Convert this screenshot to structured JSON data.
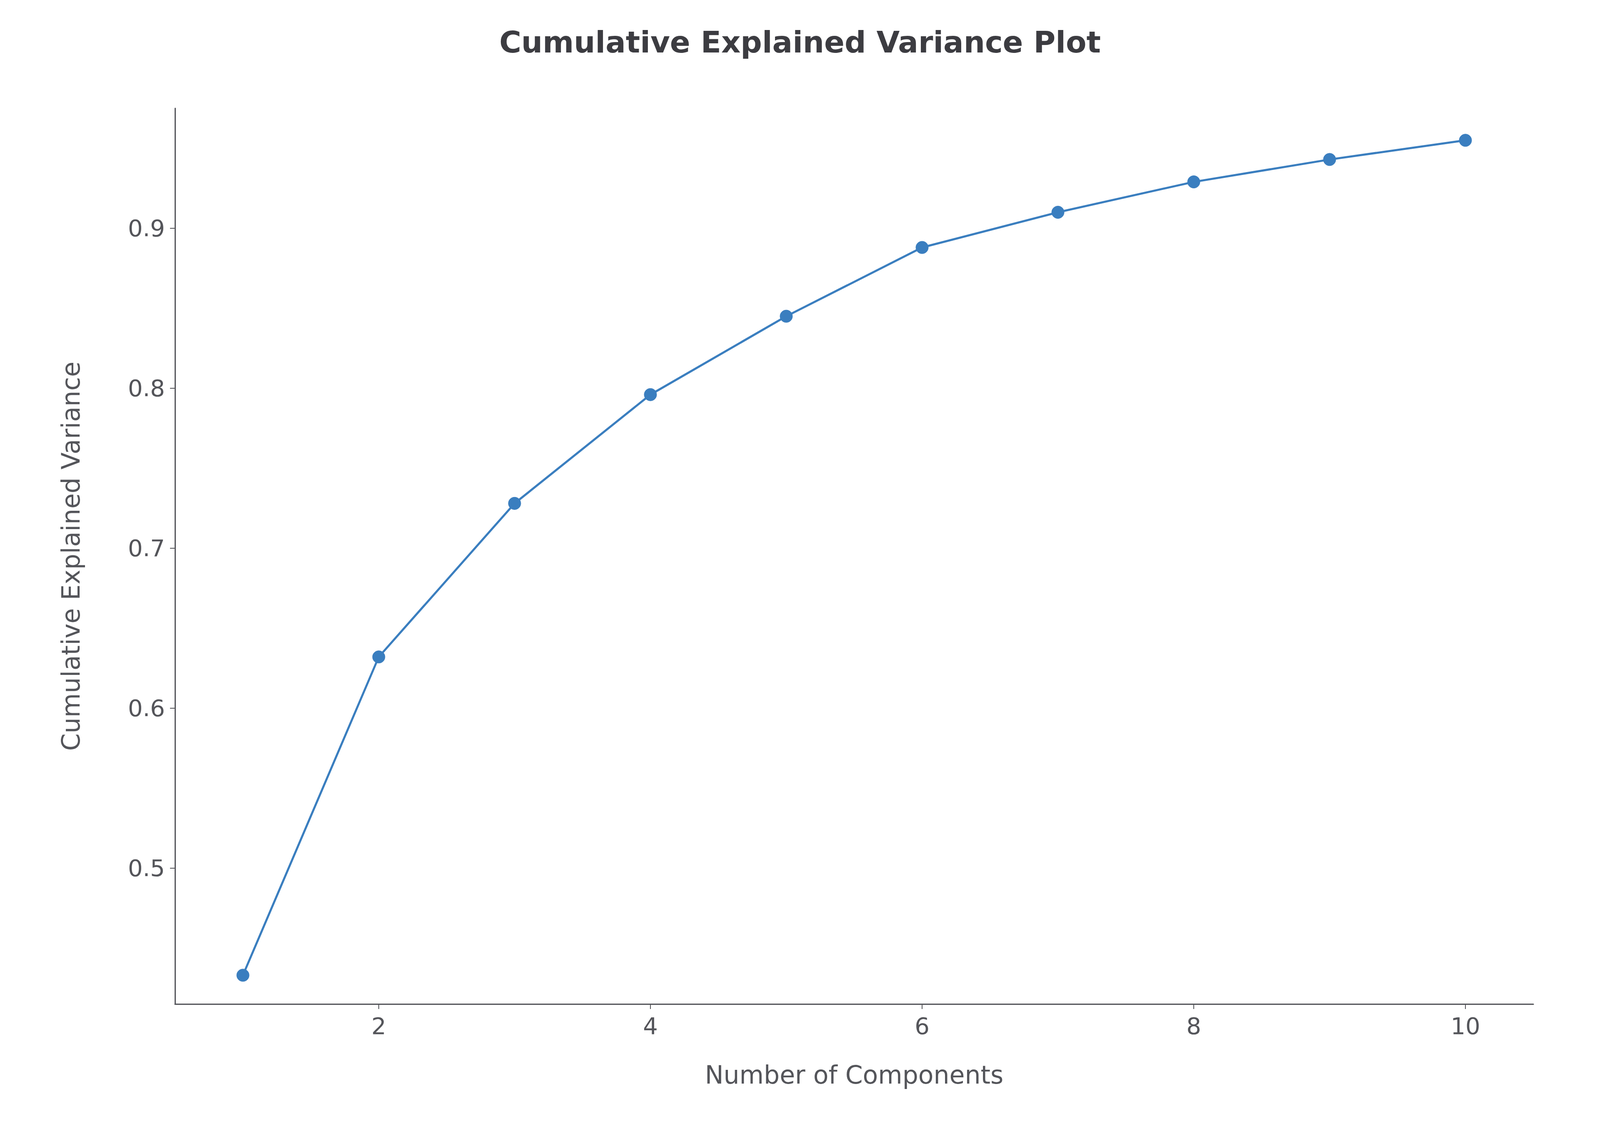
{
  "chart_data": {
    "type": "line",
    "title": "Cumulative Explained Variance Plot",
    "xlabel": "Number of Components",
    "ylabel": "Cumulative Explained Variance",
    "x": [
      1,
      2,
      3,
      4,
      5,
      6,
      7,
      8,
      9,
      10
    ],
    "values": [
      0.433,
      0.632,
      0.728,
      0.796,
      0.845,
      0.888,
      0.91,
      0.929,
      0.943,
      0.955
    ],
    "color": "#3a7ebf",
    "marker": "circle",
    "xlim": [
      0.5,
      10.5
    ],
    "ylim": [
      0.415,
      0.975
    ],
    "xticks": [
      2,
      4,
      6,
      8,
      10
    ],
    "yticks": [
      0.5,
      0.6,
      0.7,
      0.8,
      0.9
    ],
    "grid": false
  }
}
